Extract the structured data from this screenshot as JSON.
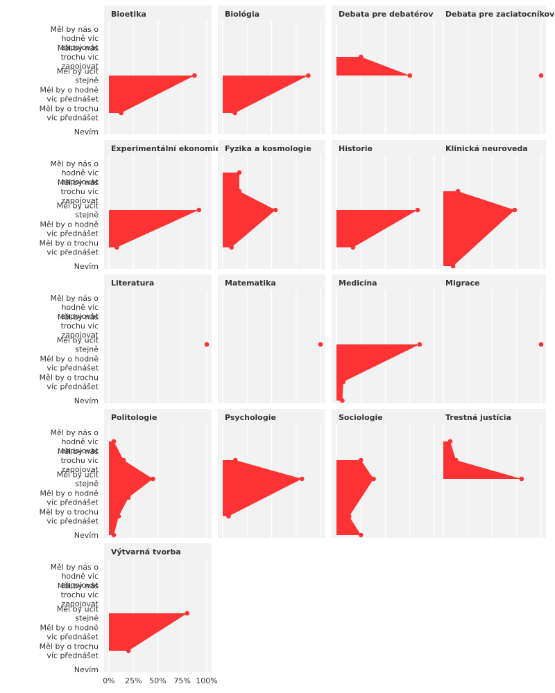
{
  "chart_data": {
    "type": "area",
    "categories": [
      "Měl by nás o hodně víc zapojovat",
      "Měl by nás trochu víc zapojovat",
      "Měl by učit stejně",
      "Měl by o hodně víc přednášet",
      "Měl by o trochu víc přednášet",
      "Nevím"
    ],
    "x_ticks": [
      "0%",
      "25%",
      "50%",
      "75%",
      "100%"
    ],
    "xlim": [
      0,
      1
    ],
    "colors": {
      "fill": "#FF3333",
      "panel_bg": "#F2F2F2",
      "grid": "#FFFFFF",
      "text": "#333333"
    },
    "panels": [
      {
        "name": "Bioetika",
        "values": [
          null,
          null,
          0.875,
          null,
          0.125,
          null
        ]
      },
      {
        "name": "Biológia",
        "values": [
          null,
          null,
          0.875,
          null,
          0.125,
          null
        ]
      },
      {
        "name": "Debata pre debatérov",
        "values": [
          null,
          0.25,
          0.75,
          null,
          null,
          null
        ]
      },
      {
        "name": "Debata pre zaciatocníkov",
        "values": [
          null,
          null,
          1.0,
          null,
          null,
          null
        ]
      },
      {
        "name": "Experimentální ekonomie",
        "values": [
          null,
          null,
          0.92,
          null,
          0.08,
          null
        ]
      },
      {
        "name": "Fyzika a kosmologie",
        "values": [
          0.17,
          0.17,
          0.54,
          null,
          0.09,
          null
        ]
      },
      {
        "name": "Historie",
        "values": [
          null,
          null,
          0.83,
          null,
          0.17,
          null
        ]
      },
      {
        "name": "Klinická neuroveda",
        "values": [
          null,
          0.15,
          0.73,
          null,
          null,
          0.1
        ]
      },
      {
        "name": "Literatura",
        "values": [
          null,
          null,
          1.0,
          null,
          null,
          null
        ]
      },
      {
        "name": "Matematika",
        "values": [
          null,
          null,
          1.0,
          null,
          null,
          null
        ]
      },
      {
        "name": "Medicína",
        "values": [
          null,
          null,
          0.85,
          null,
          0.07,
          0.06
        ]
      },
      {
        "name": "Migrace",
        "values": [
          null,
          null,
          1.0,
          null,
          null,
          null
        ]
      },
      {
        "name": "Politologie",
        "values": [
          0.05,
          0.15,
          0.45,
          0.2,
          0.1,
          0.05
        ]
      },
      {
        "name": "Psychologie",
        "values": [
          null,
          0.13,
          0.81,
          null,
          0.06,
          null
        ]
      },
      {
        "name": "Sociologie",
        "values": [
          null,
          0.25,
          0.38,
          null,
          0.13,
          0.25
        ]
      },
      {
        "name": "Trestná justícia",
        "values": [
          0.07,
          0.13,
          0.8,
          null,
          null,
          null
        ]
      },
      {
        "name": "Výtvarná tvorba",
        "values": [
          null,
          null,
          0.8,
          null,
          0.2,
          null
        ]
      }
    ]
  }
}
